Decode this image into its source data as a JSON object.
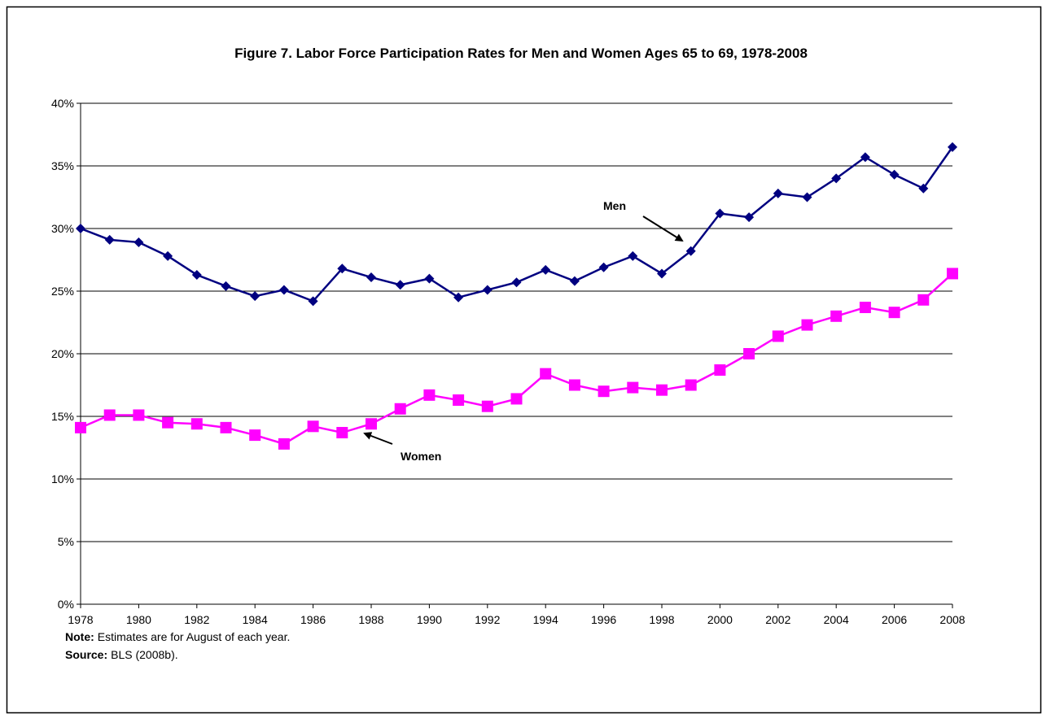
{
  "chart_data": {
    "type": "line",
    "title": "Figure 7. Labor Force Participation Rates for Men and Women Ages 65 to 69, 1978-2008",
    "x": [
      1978,
      1979,
      1980,
      1981,
      1982,
      1983,
      1984,
      1985,
      1986,
      1987,
      1988,
      1989,
      1990,
      1991,
      1992,
      1993,
      1994,
      1995,
      1996,
      1997,
      1998,
      1999,
      2000,
      2001,
      2002,
      2003,
      2004,
      2005,
      2006,
      2007,
      2008
    ],
    "series": [
      {
        "name": "Men",
        "color": "#000080",
        "marker": "diamond",
        "values": [
          30.0,
          29.1,
          28.9,
          27.8,
          26.3,
          25.4,
          24.6,
          25.1,
          24.2,
          26.8,
          26.1,
          25.5,
          26.0,
          24.5,
          25.1,
          25.7,
          26.7,
          25.8,
          26.9,
          27.8,
          26.4,
          28.2,
          31.2,
          30.9,
          32.8,
          32.5,
          34.0,
          35.7,
          34.3,
          33.2,
          36.5
        ]
      },
      {
        "name": "Women",
        "color": "#ff00ff",
        "marker": "square",
        "values": [
          14.1,
          15.1,
          15.1,
          14.5,
          14.4,
          14.1,
          13.5,
          12.8,
          14.2,
          13.7,
          14.4,
          15.6,
          16.7,
          16.3,
          15.8,
          16.4,
          18.4,
          17.5,
          17.0,
          17.3,
          17.1,
          17.5,
          18.7,
          20.0,
          21.4,
          22.3,
          23.0,
          23.7,
          23.3,
          24.3,
          26.4
        ]
      }
    ],
    "xlim": [
      1978,
      2008
    ],
    "xticks": [
      1978,
      1980,
      1982,
      1984,
      1986,
      1988,
      1990,
      1992,
      1994,
      1996,
      1998,
      2000,
      2002,
      2004,
      2006,
      2008
    ],
    "ylim": [
      0,
      40
    ],
    "yticks": [
      {
        "value": 0,
        "label": "0%"
      },
      {
        "value": 5,
        "label": "5%"
      },
      {
        "value": 10,
        "label": "10%"
      },
      {
        "value": 15,
        "label": "15%"
      },
      {
        "value": 20,
        "label": "20%"
      },
      {
        "value": 25,
        "label": "25%"
      },
      {
        "value": 30,
        "label": "30%"
      },
      {
        "value": 35,
        "label": "35%"
      },
      {
        "value": 40,
        "label": "40%"
      }
    ],
    "grid": true,
    "notes": [
      {
        "label": "Note:",
        "text": "Estimates are for August of each year."
      },
      {
        "label": "Source:",
        "text": "BLS (2008b)."
      }
    ]
  }
}
